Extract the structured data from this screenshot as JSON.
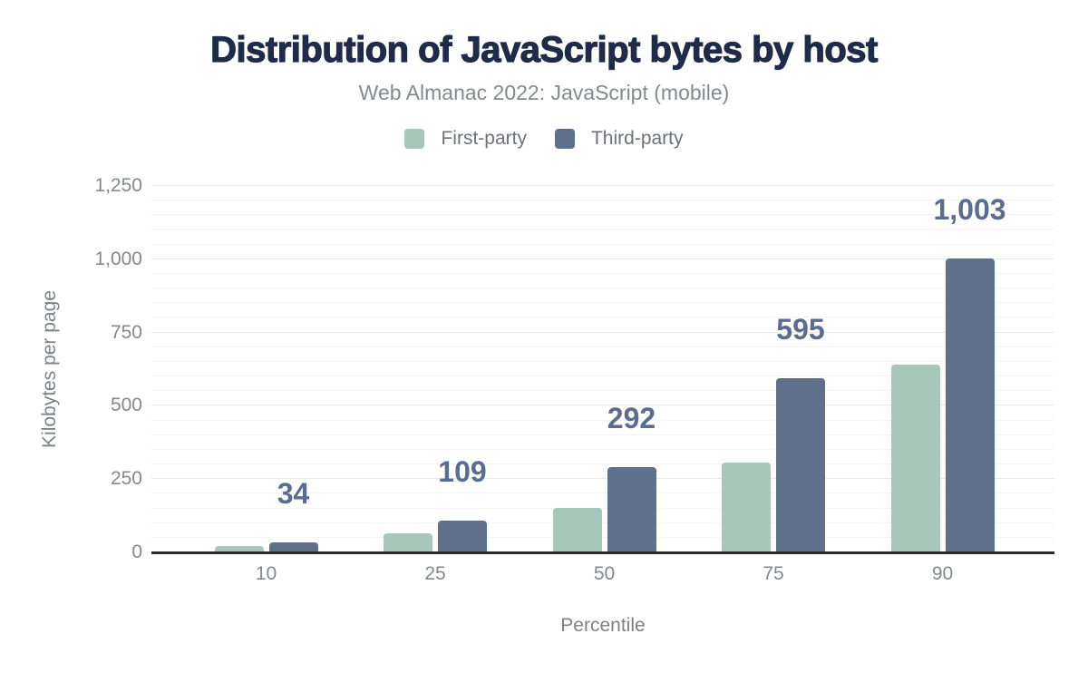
{
  "header": {
    "title": "Distribution of JavaScript bytes by host",
    "subtitle": "Web Almanac 2022: JavaScript (mobile)"
  },
  "legend": [
    {
      "label": "First-party",
      "color": "#a7c8b8"
    },
    {
      "label": "Third-party",
      "color": "#5f708c"
    }
  ],
  "chart_data": {
    "type": "bar",
    "title": "Distribution of JavaScript bytes by host",
    "subtitle": "Web Almanac 2022: JavaScript (mobile)",
    "categories": [
      "10",
      "25",
      "50",
      "75",
      "90"
    ],
    "series": [
      {
        "name": "First-party",
        "color": "#a7c8b8",
        "values": [
          21,
          65,
          152,
          306,
          640
        ],
        "values_estimated_from_gridlines": true
      },
      {
        "name": "Third-party",
        "color": "#5f708c",
        "values": [
          34,
          109,
          292,
          595,
          1003
        ],
        "data_labels": [
          "34",
          "109",
          "292",
          "595",
          "1,003"
        ],
        "data_label_color": "#5a6d90"
      }
    ],
    "xlabel": "Percentile",
    "ylabel": "Kilobytes per page",
    "ylim": [
      0,
      1250
    ],
    "y_major_ticks": [
      0,
      250,
      500,
      750,
      1000,
      1250
    ],
    "y_tick_labels": [
      "0",
      "250",
      "500",
      "750",
      "1,000",
      "1,250"
    ],
    "y_minor_step": 50,
    "grid": "horizontal-major-and-minor",
    "legend_position": "top",
    "background": "#ffffff",
    "title_color": "#1e2b49",
    "axis_line_color": "#282b30",
    "tick_label_color": "#84878d"
  }
}
